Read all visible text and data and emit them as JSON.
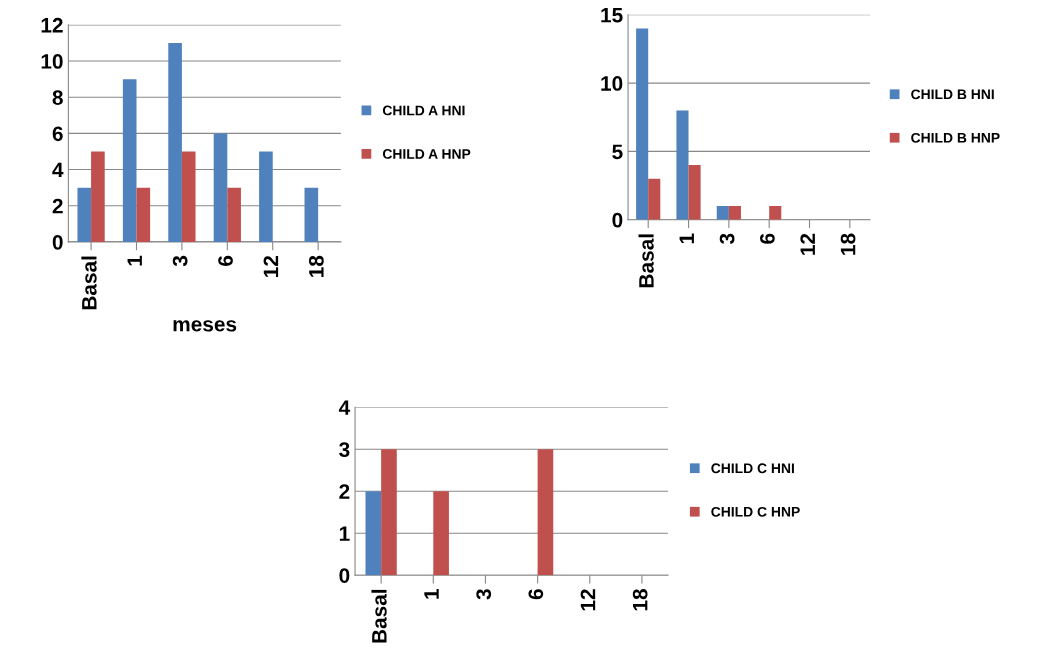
{
  "chart_data": [
    {
      "type": "bar",
      "categories": [
        "Basal",
        "1",
        "3",
        "6",
        "12",
        "18"
      ],
      "xlabel": "meses",
      "ylim": [
        0,
        12
      ],
      "yticks": [
        0,
        2,
        4,
        6,
        8,
        10,
        12
      ],
      "grid": "y",
      "legend": "right",
      "series": [
        {
          "name": "CHILD A HNI",
          "color": "#4f81bd",
          "values": [
            3,
            9,
            11,
            6,
            5,
            3
          ]
        },
        {
          "name": "CHILD A HNP",
          "color": "#c0504d",
          "values": [
            5,
            3,
            5,
            3,
            0,
            0
          ]
        }
      ]
    },
    {
      "type": "bar",
      "categories": [
        "Basal",
        "1",
        "3",
        "6",
        "12",
        "18"
      ],
      "ylim": [
        0,
        15
      ],
      "yticks": [
        0,
        5,
        10,
        15
      ],
      "grid": "y",
      "legend": "right",
      "series": [
        {
          "name": "CHILD B HNI",
          "color": "#4f81bd",
          "values": [
            14,
            8,
            1,
            0,
            0,
            0
          ]
        },
        {
          "name": "CHILD B HNP",
          "color": "#c0504d",
          "values": [
            3,
            4,
            1,
            1,
            0,
            0
          ]
        }
      ]
    },
    {
      "type": "bar",
      "categories": [
        "Basal",
        "1",
        "3",
        "6",
        "12",
        "18"
      ],
      "ylim": [
        0,
        4
      ],
      "yticks": [
        0,
        1,
        2,
        3,
        4
      ],
      "grid": "y",
      "legend": "right",
      "series": [
        {
          "name": "CHILD C HNI",
          "color": "#4f81bd",
          "values": [
            2,
            0,
            0,
            0,
            0,
            0
          ]
        },
        {
          "name": "CHILD C HNP",
          "color": "#c0504d",
          "values": [
            3,
            2,
            0,
            3,
            0,
            0
          ]
        }
      ]
    }
  ]
}
